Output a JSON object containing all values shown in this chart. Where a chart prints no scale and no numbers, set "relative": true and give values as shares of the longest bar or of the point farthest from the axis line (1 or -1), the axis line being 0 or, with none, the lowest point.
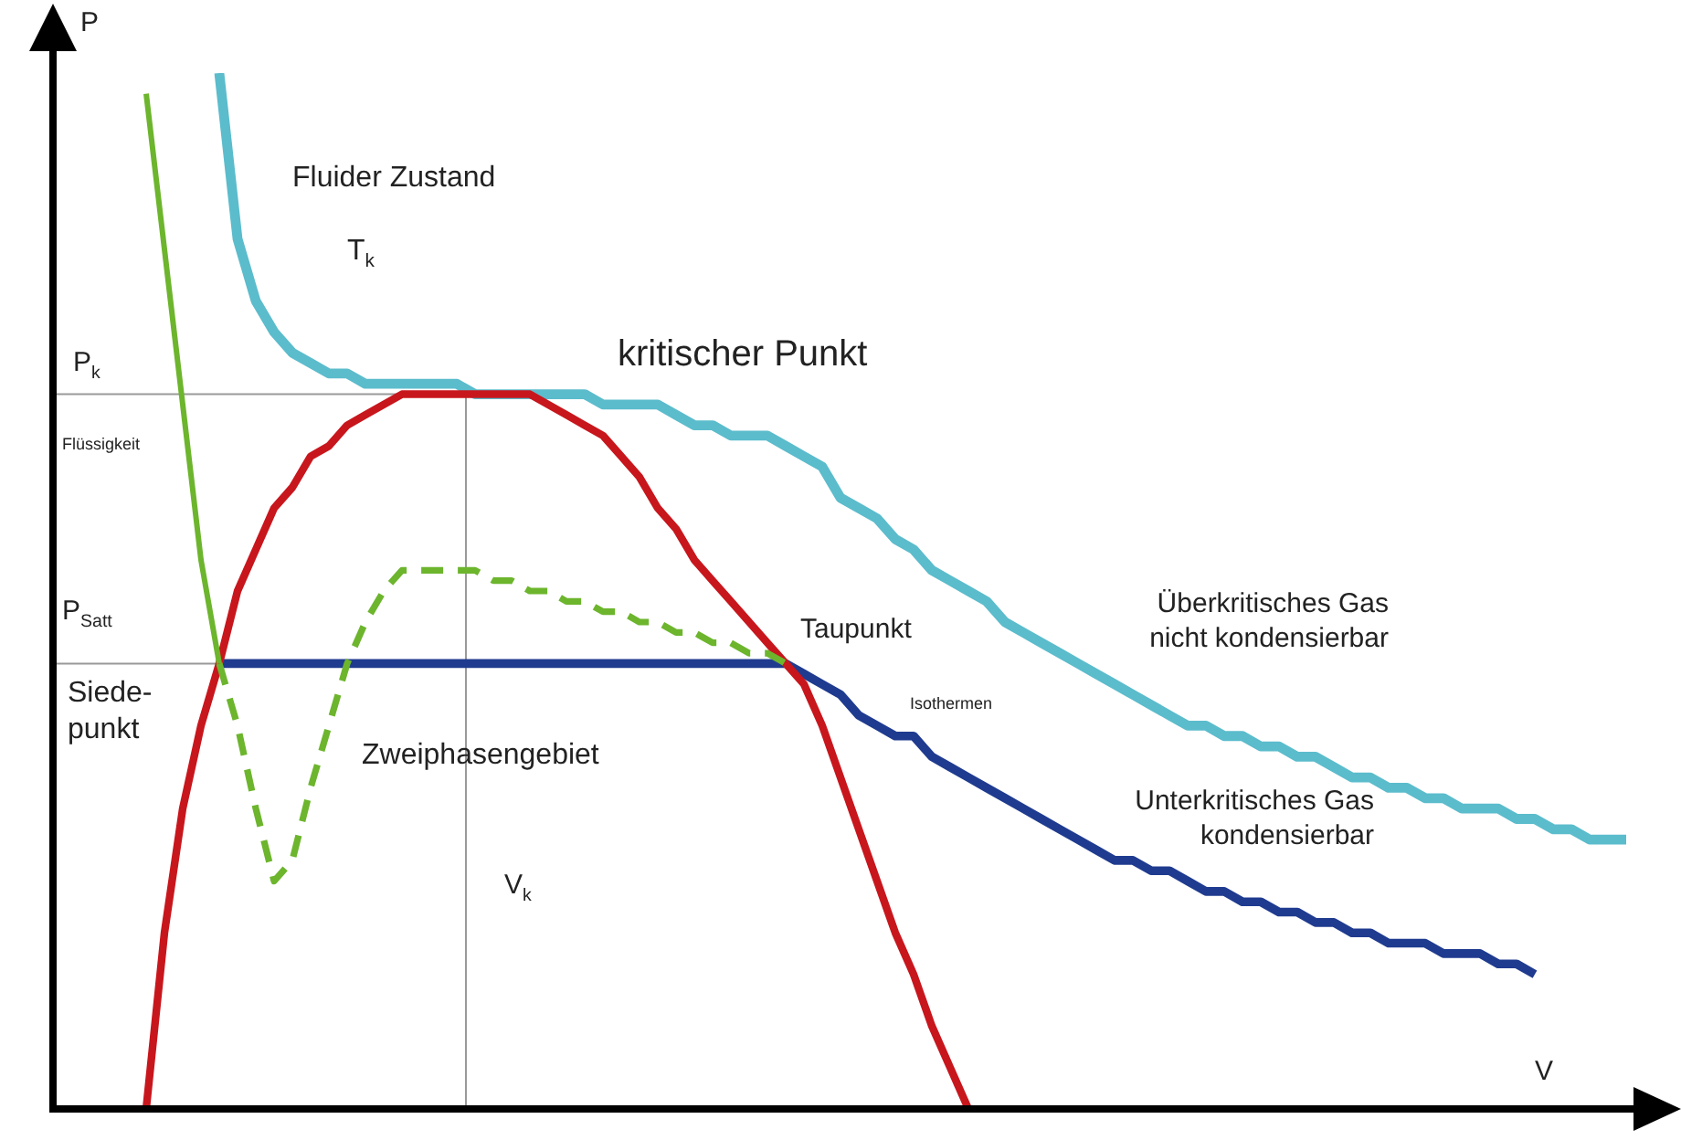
{
  "chart_data": {
    "type": "line",
    "relative": true,
    "xlabel": "V",
    "ylabel": "P",
    "legend": false,
    "categories": [
      null,
      null,
      null,
      null,
      null,
      null,
      null,
      null,
      null,
      null,
      null,
      null,
      null,
      null,
      null,
      null,
      null,
      null,
      null,
      null,
      null,
      null,
      null,
      null,
      null,
      null,
      null,
      null,
      null,
      null,
      null,
      null,
      null,
      null,
      null,
      null,
      null,
      null,
      null,
      null,
      null,
      null,
      null,
      null,
      null,
      null,
      null,
      null,
      null,
      null,
      null,
      null,
      null,
      null,
      null,
      null,
      null,
      null,
      null,
      null,
      null,
      null,
      null,
      null,
      null,
      null,
      null,
      null,
      null,
      null,
      null,
      null,
      null,
      null,
      null,
      null,
      null,
      null,
      null,
      null,
      null,
      null,
      null,
      null,
      null,
      null,
      null,
      null
    ],
    "series": [
      {
        "color": "#6cb52d",
        "line_style": "solid",
        "values": [
          null,
          null,
          null,
          null,
          null,
          0.98,
          0.83,
          0.68,
          0.53,
          0.43,
          null,
          null,
          null,
          null,
          null,
          null,
          null,
          null,
          null,
          null,
          null,
          null,
          null,
          null,
          null,
          null,
          null,
          null,
          null,
          null,
          null,
          null,
          null,
          null,
          null,
          null,
          null,
          null,
          null,
          null,
          null,
          null,
          null,
          null,
          null,
          null,
          null,
          null,
          null,
          null,
          null,
          null,
          null,
          null,
          null,
          null,
          null,
          null,
          null,
          null,
          null,
          null,
          null,
          null,
          null,
          null,
          null,
          null,
          null,
          null,
          null,
          null,
          null,
          null,
          null,
          null,
          null,
          null,
          null,
          null,
          null,
          null,
          null,
          null,
          null,
          null,
          null,
          null
        ]
      },
      {
        "color": "#6cb52d",
        "line_style": "dashed",
        "values": [
          null,
          null,
          null,
          null,
          null,
          null,
          null,
          null,
          null,
          0.43,
          0.37,
          0.29,
          0.22,
          0.24,
          0.31,
          0.37,
          0.43,
          0.47,
          0.5,
          0.52,
          0.52,
          0.52,
          0.52,
          0.52,
          0.51,
          0.51,
          0.5,
          0.5,
          0.49,
          0.49,
          0.48,
          0.48,
          0.47,
          0.47,
          0.46,
          0.46,
          0.45,
          0.45,
          0.44,
          0.44,
          0.43,
          null,
          null,
          null,
          null,
          null,
          null,
          null,
          null,
          null,
          null,
          null,
          null,
          null,
          null,
          null,
          null,
          null,
          null,
          null,
          null,
          null,
          null,
          null,
          null,
          null,
          null,
          null,
          null,
          null,
          null,
          null,
          null,
          null,
          null,
          null,
          null,
          null,
          null,
          null,
          null,
          null,
          null,
          null,
          null,
          null,
          null,
          null
        ]
      },
      {
        "color": "#c8161d",
        "line_style": "solid",
        "values": [
          null,
          null,
          null,
          null,
          null,
          0,
          0.17,
          0.29,
          0.37,
          0.43,
          0.5,
          0.54,
          0.58,
          0.6,
          0.63,
          0.64,
          0.66,
          0.67,
          0.68,
          0.69,
          0.69,
          0.69,
          0.69,
          0.69,
          0.69,
          0.69,
          0.69,
          0.68,
          0.67,
          0.66,
          0.65,
          0.63,
          0.61,
          0.58,
          0.56,
          0.53,
          0.51,
          0.49,
          0.47,
          0.45,
          0.43,
          0.41,
          0.37,
          0.32,
          0.27,
          0.22,
          0.17,
          0.13,
          0.08,
          0.04,
          0,
          null,
          null,
          null,
          null,
          null,
          null,
          null,
          null,
          null,
          null,
          null,
          null,
          null,
          null,
          null,
          null,
          null,
          null,
          null,
          null,
          null,
          null,
          null,
          null,
          null,
          null,
          null,
          null,
          null,
          null,
          null,
          null,
          null,
          null,
          null,
          null,
          null
        ]
      },
      {
        "color": "#1f3b8f",
        "line_style": "solid",
        "values": [
          null,
          null,
          null,
          null,
          null,
          null,
          null,
          null,
          null,
          0.43,
          0.43,
          0.43,
          0.43,
          0.43,
          0.43,
          0.43,
          0.43,
          0.43,
          0.43,
          0.43,
          0.43,
          0.43,
          0.43,
          0.43,
          0.43,
          0.43,
          0.43,
          0.43,
          0.43,
          0.43,
          0.43,
          0.43,
          0.43,
          0.43,
          0.43,
          0.43,
          0.43,
          0.43,
          0.43,
          0.43,
          0.43,
          0.42,
          0.41,
          0.4,
          0.38,
          0.37,
          0.36,
          0.36,
          0.34,
          0.33,
          0.32,
          0.31,
          0.3,
          0.29,
          0.28,
          0.27,
          0.26,
          0.25,
          0.24,
          0.24,
          0.23,
          0.23,
          0.22,
          0.21,
          0.21,
          0.2,
          0.2,
          0.19,
          0.19,
          0.18,
          0.18,
          0.17,
          0.17,
          0.16,
          0.16,
          0.16,
          0.15,
          0.15,
          0.15,
          0.14,
          0.14,
          0.13,
          null,
          null,
          null,
          null,
          null,
          null
        ]
      },
      {
        "color": "#5bbccc",
        "line_style": "solid",
        "values": [
          null,
          null,
          null,
          null,
          null,
          null,
          null,
          null,
          null,
          1.0,
          0.84,
          0.78,
          0.75,
          0.73,
          0.72,
          0.71,
          0.71,
          0.7,
          0.7,
          0.7,
          0.7,
          0.7,
          0.7,
          0.69,
          0.69,
          0.69,
          0.69,
          0.69,
          0.69,
          0.69,
          0.68,
          0.68,
          0.68,
          0.68,
          0.67,
          0.66,
          0.66,
          0.65,
          0.65,
          0.65,
          0.64,
          0.63,
          0.62,
          0.59,
          0.58,
          0.57,
          0.55,
          0.54,
          0.52,
          0.51,
          0.5,
          0.49,
          0.47,
          0.46,
          0.45,
          0.44,
          0.43,
          0.42,
          0.41,
          0.4,
          0.39,
          0.38,
          0.37,
          0.37,
          0.36,
          0.36,
          0.35,
          0.35,
          0.34,
          0.34,
          0.33,
          0.32,
          0.32,
          0.31,
          0.31,
          0.3,
          0.3,
          0.29,
          0.29,
          0.29,
          0.28,
          0.28,
          0.27,
          0.27,
          0.26,
          0.26,
          0.26,
          null
        ]
      }
    ],
    "ref_lines": [
      {
        "axis": "y",
        "value": 0.69,
        "label": "P$_{k}$",
        "color": "#999999"
      },
      {
        "axis": "y",
        "value": 0.43,
        "label": "P$_{Satt}$",
        "color": "#999999"
      }
    ],
    "annotations": [
      "Fluider Zustand",
      "T$_{k}$",
      "kritischer Punkt",
      "Flüssigkeit",
      "Siede-\npunkt",
      "Taupunkt",
      "Zweiphasengebiet",
      "V$_{k}$",
      "Überkritisches Gas\nnicht kondensierbar",
      "Isothermen",
      "Unterkritisches Gas\nkondensierbar"
    ]
  }
}
